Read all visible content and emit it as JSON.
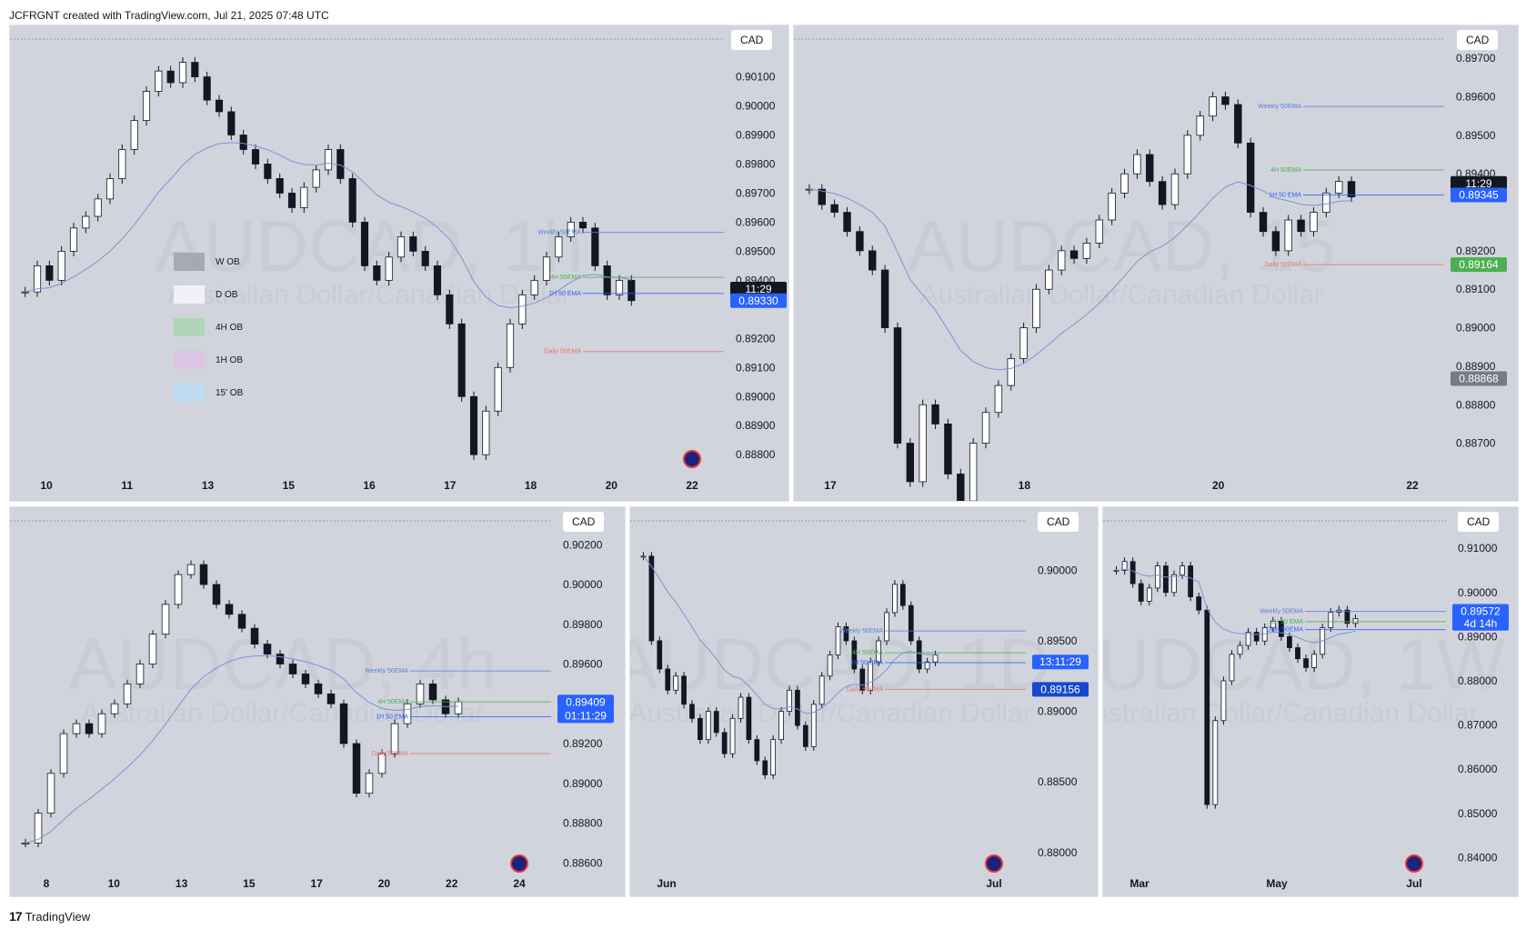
{
  "header": {
    "text": "JCFRGNT created with TradingView.com, Jul 21, 2025 07:48 UTC"
  },
  "footer": {
    "logo": "17",
    "brand": "TradingView"
  },
  "colors": {
    "bg": "#d1d4dc",
    "candle_up": "#ffffff",
    "candle_down": "#131722",
    "blue_label": "#2962ff",
    "green_label": "#4caf50",
    "gray_label": "#787b86"
  },
  "icons": {
    "flag": "australia-flag-icon"
  },
  "legend": {
    "items": [
      {
        "label": "W OB",
        "color": "#9598a1"
      },
      {
        "label": "D OB",
        "color": "#ffffff"
      },
      {
        "label": "4H OB",
        "color": "#a5d6a7"
      },
      {
        "label": "1H OB",
        "color": "#e1bee7"
      },
      {
        "label": "15' OB",
        "color": "#bbdefb"
      }
    ]
  },
  "chart_data": [
    {
      "type": "candlestick",
      "symbol": "AUDCAD, 1h",
      "watermark": "AUDCAD, 1h",
      "watermark_sub": "Australian Dollar/Canadian Dollar",
      "currency": "CAD",
      "ylim": [
        0.8876,
        0.9023
      ],
      "y_ticks": [
        "0.90100",
        "0.90000",
        "0.89900",
        "0.89800",
        "0.89700",
        "0.89600",
        "0.89500",
        "0.89400",
        "0.89200",
        "0.89100",
        "0.89000",
        "0.88900",
        "0.88800"
      ],
      "x_ticks": [
        "10",
        "11",
        "13",
        "15",
        "16",
        "17",
        "18",
        "20",
        "22"
      ],
      "level_labels": [
        {
          "text": "Weekly 50EMA",
          "price": 0.89565
        },
        {
          "text": "4H 50EMA",
          "price": 0.8941
        },
        {
          "text": "1H 50 EMA",
          "price": 0.89355
        },
        {
          "text": "Daily 50EMA",
          "price": 0.89155
        }
      ],
      "price_labels": [
        {
          "text": "11:29",
          "price": 0.8937,
          "style": "black"
        },
        {
          "text": "0.89330",
          "price": 0.8933,
          "style": "blue"
        }
      ],
      "closes": [
        0.8936,
        0.8945,
        0.894,
        0.895,
        0.8958,
        0.8962,
        0.8968,
        0.8975,
        0.8985,
        0.8995,
        0.9005,
        0.9012,
        0.9008,
        0.9015,
        0.901,
        0.9002,
        0.8998,
        0.899,
        0.8985,
        0.898,
        0.8975,
        0.897,
        0.8965,
        0.8972,
        0.8978,
        0.8985,
        0.8975,
        0.896,
        0.8945,
        0.894,
        0.8948,
        0.8955,
        0.895,
        0.8945,
        0.8935,
        0.8925,
        0.89,
        0.888,
        0.8895,
        0.891,
        0.8925,
        0.8935,
        0.894,
        0.8948,
        0.8955,
        0.896,
        0.8958,
        0.8945,
        0.8935,
        0.894,
        0.8933
      ]
    },
    {
      "type": "candlestick",
      "symbol": "AUDCAD, 15",
      "watermark": "AUDCAD, 15",
      "watermark_sub": "Australian Dollar/Canadian Dollar",
      "currency": "CAD",
      "ylim": [
        0.8864,
        0.8975
      ],
      "y_ticks": [
        "0.89700",
        "0.89600",
        "0.89500",
        "0.89400",
        "0.89200",
        "0.89100",
        "0.89000",
        "0.88900",
        "0.88800",
        "0.88700"
      ],
      "x_ticks": [
        "17",
        "18",
        "20",
        "22"
      ],
      "level_labels": [
        {
          "text": "Weekly 50EMA",
          "price": 0.89575
        },
        {
          "text": "4H 50EMA",
          "price": 0.8941
        },
        {
          "text": "1H 50 EMA",
          "price": 0.89345
        },
        {
          "text": "Daily 50EMA",
          "price": 0.89164
        }
      ],
      "price_labels": [
        {
          "text": "11:29",
          "price": 0.89375,
          "style": "black"
        },
        {
          "text": "0.89345",
          "price": 0.89345,
          "style": "blue"
        },
        {
          "text": "0.89164",
          "price": 0.89164,
          "style": "green"
        },
        {
          "text": "0.88868",
          "price": 0.88868,
          "style": "gray"
        }
      ],
      "closes": [
        0.8936,
        0.8932,
        0.893,
        0.8925,
        0.892,
        0.8915,
        0.89,
        0.887,
        0.886,
        0.888,
        0.8875,
        0.8862,
        0.8855,
        0.887,
        0.8878,
        0.8885,
        0.8892,
        0.89,
        0.891,
        0.8915,
        0.892,
        0.8918,
        0.8922,
        0.8928,
        0.8935,
        0.894,
        0.8945,
        0.8938,
        0.8932,
        0.894,
        0.895,
        0.8955,
        0.896,
        0.8958,
        0.8948,
        0.893,
        0.8925,
        0.892,
        0.8928,
        0.8925,
        0.893,
        0.8935,
        0.8938,
        0.8934
      ]
    },
    {
      "type": "candlestick",
      "symbol": "AUDCAD, 4h",
      "watermark": "AUDCAD, 4h",
      "watermark_sub": "Australian Dollar/Canadian Dollar",
      "currency": "CAD",
      "ylim": [
        0.8856,
        0.9032
      ],
      "y_ticks": [
        "0.90200",
        "0.90000",
        "0.89800",
        "0.89600",
        "0.89400",
        "0.89200",
        "0.89000",
        "0.88800",
        "0.88600"
      ],
      "x_ticks": [
        "8",
        "10",
        "13",
        "15",
        "17",
        "20",
        "22",
        "24"
      ],
      "level_labels": [
        {
          "text": "Weekly 50EMA",
          "price": 0.89565
        },
        {
          "text": "4H 50EMA",
          "price": 0.8941
        },
        {
          "text": "1H 50 EMA",
          "price": 0.89335
        },
        {
          "text": "Daily 50EMA",
          "price": 0.8915
        }
      ],
      "price_labels": [
        {
          "text": "0.89409",
          "price": 0.89409,
          "style": "blue"
        },
        {
          "text": "01:11:29",
          "price": 0.8934,
          "style": "blue"
        }
      ],
      "closes": [
        0.887,
        0.8885,
        0.8905,
        0.8925,
        0.893,
        0.8925,
        0.8935,
        0.894,
        0.895,
        0.896,
        0.8975,
        0.899,
        0.9005,
        0.901,
        0.9,
        0.899,
        0.8985,
        0.8978,
        0.897,
        0.8965,
        0.896,
        0.8955,
        0.895,
        0.8945,
        0.894,
        0.892,
        0.8895,
        0.8905,
        0.8915,
        0.893,
        0.894,
        0.895,
        0.8942,
        0.8935,
        0.8941
      ]
    },
    {
      "type": "candlestick",
      "symbol": "AUDCAD, 1D",
      "watermark": "AUDCAD, 1D",
      "watermark_sub": "Australian Dollar/Canadian Dollar",
      "currency": "CAD",
      "ylim": [
        0.8787,
        0.9035
      ],
      "y_ticks": [
        "0.90000",
        "0.89500",
        "0.89000",
        "0.88500",
        "0.88000"
      ],
      "x_ticks": [
        "Jun",
        "Jul"
      ],
      "level_labels": [
        {
          "text": "Weekly 50EMA",
          "price": 0.8957
        },
        {
          "text": "4H 50EMA",
          "price": 0.89415
        },
        {
          "text": "1H 50 EMA",
          "price": 0.89345
        },
        {
          "text": "Daily 50EMA",
          "price": 0.89156
        }
      ],
      "price_labels": [
        {
          "text": "13:11:29",
          "price": 0.8935,
          "style": "blue"
        },
        {
          "text": "0.89156",
          "price": 0.89156,
          "style": "dark"
        }
      ],
      "closes": [
        0.901,
        0.895,
        0.893,
        0.8915,
        0.8925,
        0.8905,
        0.8895,
        0.888,
        0.89,
        0.8885,
        0.887,
        0.8895,
        0.891,
        0.888,
        0.8865,
        0.8855,
        0.888,
        0.89,
        0.8915,
        0.889,
        0.8875,
        0.8905,
        0.8925,
        0.894,
        0.896,
        0.895,
        0.893,
        0.8915,
        0.8935,
        0.895,
        0.897,
        0.899,
        0.8975,
        0.895,
        0.893,
        0.8935,
        0.894
      ]
    },
    {
      "type": "candlestick",
      "symbol": "AUDCAD, 1W",
      "watermark": "AUDCAD, 1W",
      "watermark_sub": "Australian Dollar/Canadian Dollar",
      "currency": "CAD",
      "ylim": [
        0.837,
        0.9162
      ],
      "y_ticks": [
        "0.91000",
        "0.90000",
        "0.89000",
        "0.88000",
        "0.87000",
        "0.86000",
        "0.85000",
        "0.84000"
      ],
      "x_ticks": [
        "Mar",
        "May",
        "Jul"
      ],
      "level_labels": [
        {
          "text": "Weekly 50EMA",
          "price": 0.8957
        },
        {
          "text": "1H 50 EMA",
          "price": 0.8934
        },
        {
          "text": "Daily 50EMA",
          "price": 0.8916
        }
      ],
      "price_labels": [
        {
          "text": "0.89572",
          "price": 0.89572,
          "style": "blue"
        },
        {
          "text": "4d 14h",
          "price": 0.893,
          "style": "blue"
        }
      ],
      "closes": [
        0.905,
        0.907,
        0.902,
        0.898,
        0.901,
        0.906,
        0.9,
        0.904,
        0.906,
        0.899,
        0.896,
        0.852,
        0.871,
        0.88,
        0.886,
        0.888,
        0.891,
        0.889,
        0.892,
        0.8935,
        0.89,
        0.8875,
        0.885,
        0.883,
        0.886,
        0.892,
        0.8955,
        0.896,
        0.893,
        0.8941
      ]
    }
  ]
}
